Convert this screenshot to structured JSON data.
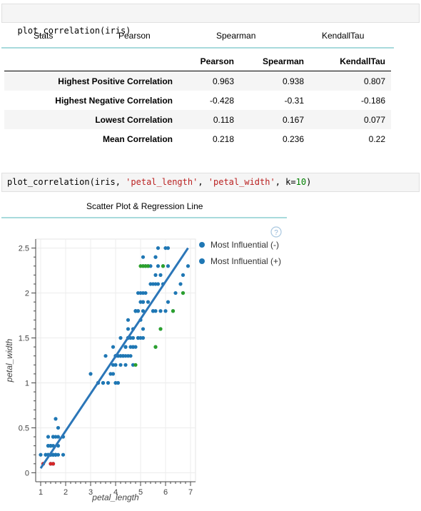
{
  "cell1": {
    "code": "plot_correlation(iris)"
  },
  "cell2": {
    "fn": "plot_correlation(iris, ",
    "arg1": "'petal_length'",
    "sep": ", ",
    "arg2": "'petal_width'",
    "kw": ", k=",
    "k": "10",
    "end": ")"
  },
  "tabs": [
    "Stats",
    "Pearson",
    "Spearman",
    "KendallTau"
  ],
  "table": {
    "headers": [
      "",
      "Pearson",
      "Spearman",
      "KendallTau"
    ],
    "rows": [
      {
        "label": "Highest Positive Correlation",
        "values": [
          "0.963",
          "0.938",
          "0.807"
        ]
      },
      {
        "label": "Highest Negative Correlation",
        "values": [
          "-0.428",
          "-0.31",
          "-0.186"
        ]
      },
      {
        "label": "Lowest Correlation",
        "values": [
          "0.118",
          "0.167",
          "0.077"
        ]
      },
      {
        "label": "Mean Correlation",
        "values": [
          "0.218",
          "0.236",
          "0.22"
        ]
      }
    ]
  },
  "plot_tab": "Scatter Plot & Regression Line",
  "colors": {
    "points": "#1f77b4",
    "line": "#2b76b8",
    "pos": "#2ca02c",
    "neg": "#d62728"
  },
  "chart_data": {
    "type": "scatter",
    "xlabel": "petal_length",
    "ylabel": "petal_width",
    "xlim": [
      0.8,
      7.2
    ],
    "ylim": [
      -0.1,
      2.6
    ],
    "xticks": [
      1,
      2,
      3,
      4,
      5,
      6,
      7
    ],
    "yticks": [
      0,
      0.5,
      1,
      1.5,
      2,
      2.5
    ],
    "ytick_labels": [
      "0",
      "0.5",
      "1",
      "1.5",
      "2",
      "2.5"
    ],
    "legend": [
      "Most Influential (-)",
      "Most Influential (+)"
    ],
    "legend_position": "outside-right",
    "regression_line": {
      "x": [
        1.0,
        6.9
      ],
      "y": [
        0.05,
        2.5
      ]
    },
    "series": [
      {
        "name": "points",
        "x": [
          1.4,
          1.4,
          1.3,
          1.5,
          1.4,
          1.7,
          1.4,
          1.5,
          1.4,
          1.5,
          1.5,
          1.6,
          1.4,
          1.1,
          1.2,
          1.5,
          1.3,
          1.4,
          1.7,
          1.5,
          1.7,
          1.5,
          1.0,
          1.7,
          1.9,
          1.6,
          1.6,
          1.5,
          1.4,
          1.6,
          1.6,
          1.5,
          1.5,
          1.4,
          1.5,
          1.2,
          1.3,
          1.4,
          1.3,
          1.5,
          1.3,
          1.3,
          1.3,
          1.6,
          1.9,
          1.4,
          1.6,
          1.4,
          1.5,
          1.4,
          4.7,
          4.5,
          4.9,
          4.0,
          4.6,
          4.5,
          4.7,
          3.3,
          4.6,
          3.9,
          3.5,
          4.2,
          4.0,
          4.7,
          3.6,
          4.4,
          4.5,
          4.1,
          4.5,
          3.9,
          4.8,
          4.0,
          4.9,
          4.7,
          4.3,
          4.4,
          4.8,
          5.0,
          4.5,
          3.5,
          3.8,
          3.7,
          3.9,
          5.1,
          4.5,
          4.5,
          4.7,
          4.4,
          4.1,
          4.0,
          4.4,
          4.6,
          4.0,
          3.3,
          4.2,
          4.2,
          4.2,
          4.3,
          3.0,
          4.1,
          6.0,
          5.1,
          5.9,
          5.6,
          5.8,
          6.6,
          4.5,
          6.3,
          5.8,
          6.1,
          5.1,
          5.3,
          5.5,
          5.0,
          5.1,
          5.3,
          5.5,
          6.7,
          6.9,
          5.0,
          5.7,
          4.9,
          6.7,
          4.9,
          5.7,
          6.0,
          4.8,
          4.9,
          5.6,
          5.8,
          6.1,
          6.4,
          5.6,
          5.1,
          5.6,
          6.1,
          5.6,
          5.5,
          4.8,
          5.4,
          5.6,
          5.1,
          5.1,
          5.9,
          5.7,
          5.2,
          5.0,
          5.2,
          5.4,
          5.1
        ],
        "y": [
          0.2,
          0.2,
          0.2,
          0.2,
          0.2,
          0.4,
          0.3,
          0.2,
          0.2,
          0.1,
          0.2,
          0.2,
          0.1,
          0.1,
          0.2,
          0.4,
          0.4,
          0.3,
          0.3,
          0.3,
          0.2,
          0.4,
          0.2,
          0.5,
          0.2,
          0.2,
          0.4,
          0.2,
          0.2,
          0.2,
          0.2,
          0.4,
          0.1,
          0.2,
          0.2,
          0.2,
          0.2,
          0.1,
          0.2,
          0.2,
          0.3,
          0.3,
          0.2,
          0.6,
          0.4,
          0.3,
          0.2,
          0.2,
          0.2,
          0.2,
          1.4,
          1.5,
          1.5,
          1.3,
          1.5,
          1.3,
          1.6,
          1.0,
          1.3,
          1.4,
          1.0,
          1.5,
          1.0,
          1.4,
          1.3,
          1.4,
          1.5,
          1.0,
          1.5,
          1.1,
          1.8,
          1.3,
          1.5,
          1.2,
          1.3,
          1.4,
          1.4,
          1.7,
          1.5,
          1.0,
          1.1,
          1.0,
          1.2,
          1.6,
          1.5,
          1.6,
          1.5,
          1.3,
          1.3,
          1.3,
          1.2,
          1.4,
          1.2,
          1.0,
          1.3,
          1.2,
          1.3,
          1.3,
          1.1,
          1.3,
          2.5,
          1.9,
          2.1,
          1.8,
          2.2,
          2.1,
          1.7,
          1.8,
          1.8,
          2.5,
          2.0,
          1.9,
          2.1,
          2.0,
          2.4,
          2.3,
          1.8,
          2.2,
          2.3,
          1.5,
          2.3,
          2.0,
          2.0,
          1.8,
          2.1,
          1.8,
          1.8,
          1.8,
          2.1,
          1.6,
          1.9,
          2.0,
          2.2,
          1.5,
          1.4,
          2.3,
          2.4,
          1.8,
          1.8,
          2.1,
          2.4,
          2.3,
          1.9,
          2.3,
          2.5,
          2.3,
          1.9,
          2.0,
          2.3,
          1.8
        ]
      },
      {
        "name": "Most Influential (+)",
        "x": [
          5.9,
          5.0,
          5.1,
          5.2,
          5.3,
          6.7,
          6.3,
          5.6,
          4.8,
          5.8
        ],
        "y": [
          2.3,
          2.3,
          2.3,
          2.3,
          2.3,
          2.0,
          1.8,
          1.4,
          1.2,
          1.6
        ]
      },
      {
        "name": "Most Influential (-)",
        "x": [
          1.1,
          1.4,
          1.5
        ],
        "y": [
          0.1,
          0.1,
          0.1
        ]
      }
    ]
  }
}
